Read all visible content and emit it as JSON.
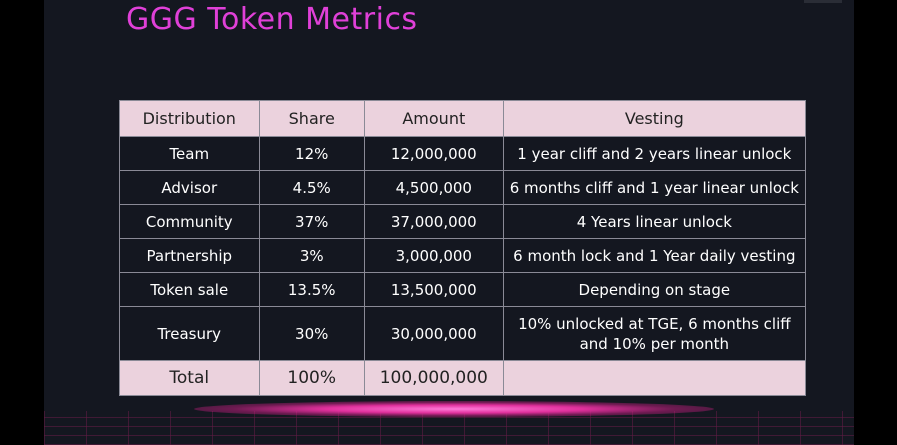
{
  "title": "GGG Token Metrics",
  "table": {
    "headers": [
      "Distribution",
      "Share",
      "Amount",
      "Vesting"
    ],
    "rows": [
      {
        "distribution": "Team",
        "share": "12%",
        "amount": "12,000,000",
        "vesting": "1 year cliff and 2 years linear unlock"
      },
      {
        "distribution": "Advisor",
        "share": "4.5%",
        "amount": "4,500,000",
        "vesting": "6 months cliff and 1 year linear unlock"
      },
      {
        "distribution": "Community",
        "share": "37%",
        "amount": "37,000,000",
        "vesting": "4 Years linear unlock"
      },
      {
        "distribution": "Partnership",
        "share": "3%",
        "amount": "3,000,000",
        "vesting": "6 month lock and 1 Year daily vesting"
      },
      {
        "distribution": "Token sale",
        "share": "13.5%",
        "amount": "13,500,000",
        "vesting": "Depending on stage"
      },
      {
        "distribution": "Treasury",
        "share": "30%",
        "amount": "30,000,000",
        "vesting": "10% unlocked at TGE, 6 months cliff and 10% per month"
      }
    ],
    "total": {
      "distribution": "Total",
      "share": "100%",
      "amount": "100,000,000",
      "vesting": ""
    }
  },
  "colors": {
    "title": "#e040d8",
    "header_bg": "#ebd2dd",
    "body_bg": "#141720",
    "border": "#8a8a96",
    "glow": "#e0309c"
  }
}
